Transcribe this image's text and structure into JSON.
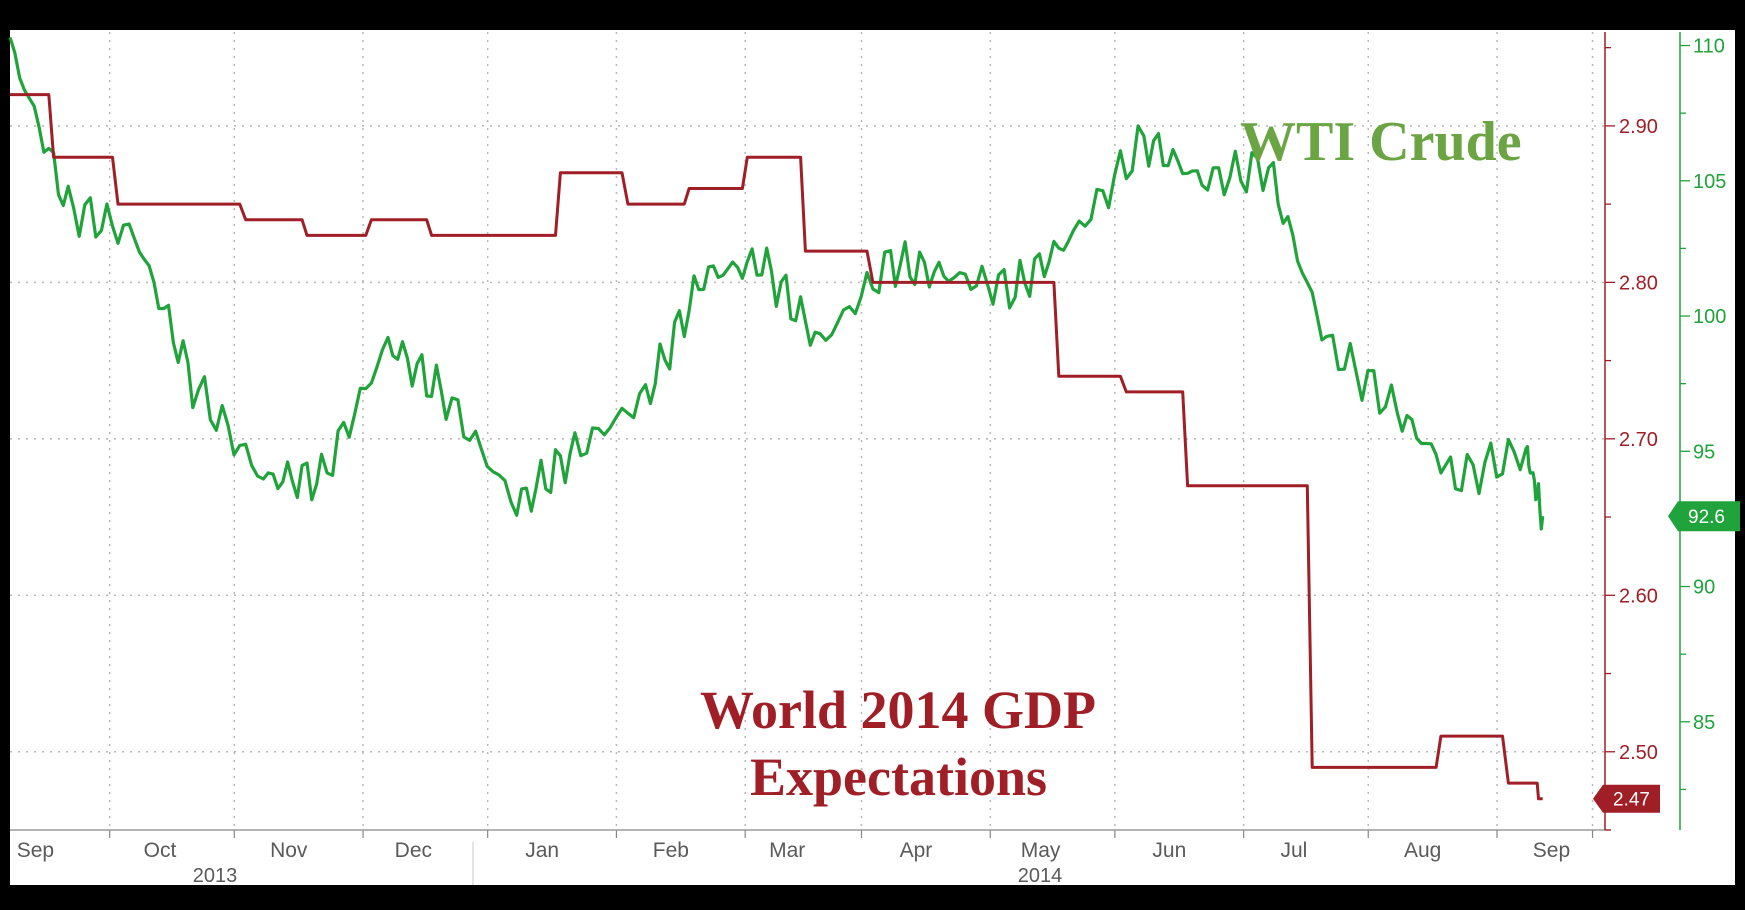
{
  "chart_data": {
    "type": "line",
    "x_dates": [
      "2013-09-01",
      "2013-09-15",
      "2013-10-01",
      "2013-10-15",
      "2013-11-01",
      "2013-11-15",
      "2013-12-01",
      "2013-12-15",
      "2014-01-01",
      "2014-01-15",
      "2014-02-01",
      "2014-02-15",
      "2014-03-01",
      "2014-03-15",
      "2014-04-01",
      "2014-04-15",
      "2014-05-01",
      "2014-05-15",
      "2014-06-01",
      "2014-06-15",
      "2014-07-01",
      "2014-07-15",
      "2014-08-01",
      "2014-08-15",
      "2014-09-01",
      "2014-09-05"
    ],
    "series": [
      {
        "name": "WTI Crude",
        "axis": "right",
        "color": "#1fa33a",
        "values": [
          110.0,
          104.0,
          103.0,
          97.5,
          94.0,
          94.0,
          99.0,
          97.0,
          93.0,
          95.0,
          97.0,
          101.5,
          102.0,
          99.0,
          102.0,
          101.5,
          101.0,
          103.0,
          106.5,
          105.0,
          105.5,
          99.0,
          96.5,
          94.0,
          95.0,
          92.6
        ],
        "last_value_label": "92.6"
      },
      {
        "name": "World 2014 GDP Expectations",
        "axis": "left",
        "color": "#a01e26",
        "values": [
          2.92,
          2.88,
          2.85,
          2.85,
          2.84,
          2.83,
          2.84,
          2.83,
          2.83,
          2.87,
          2.85,
          2.86,
          2.88,
          2.82,
          2.8,
          2.8,
          2.8,
          2.74,
          2.73,
          2.67,
          2.67,
          2.49,
          2.49,
          2.51,
          2.48,
          2.47
        ],
        "last_value_label": "2.47"
      }
    ],
    "annotations": [
      {
        "text": "WTI Crude",
        "color": "#6aa443"
      },
      {
        "text": "World 2014 GDP",
        "color": "#a01e26"
      },
      {
        "text": "Expectations",
        "color": "#a01e26"
      }
    ],
    "x_tick_labels": [
      "Sep",
      "Oct",
      "Nov",
      "Dec",
      "Jan",
      "Feb",
      "Mar",
      "Apr",
      "May",
      "Jun",
      "Jul",
      "Aug",
      "Sep"
    ],
    "x_year_labels": [
      "2013",
      "2014"
    ],
    "y_left_ticks": [
      "2.90",
      "2.80",
      "2.70",
      "2.60",
      "2.50"
    ],
    "y_right_ticks": [
      "110",
      "105",
      "100",
      "95",
      "90",
      "85"
    ],
    "y_left_range": [
      2.45,
      2.96
    ],
    "y_right_range": [
      81.0,
      110.5
    ],
    "grid": true,
    "title": "",
    "xlabel": "",
    "ylabel": ""
  },
  "colors": {
    "background": "#ffffff",
    "frame": "#000000",
    "grid": "#b8b8b8",
    "axis_left": "#a01e26",
    "axis_right": "#1fa33a"
  }
}
